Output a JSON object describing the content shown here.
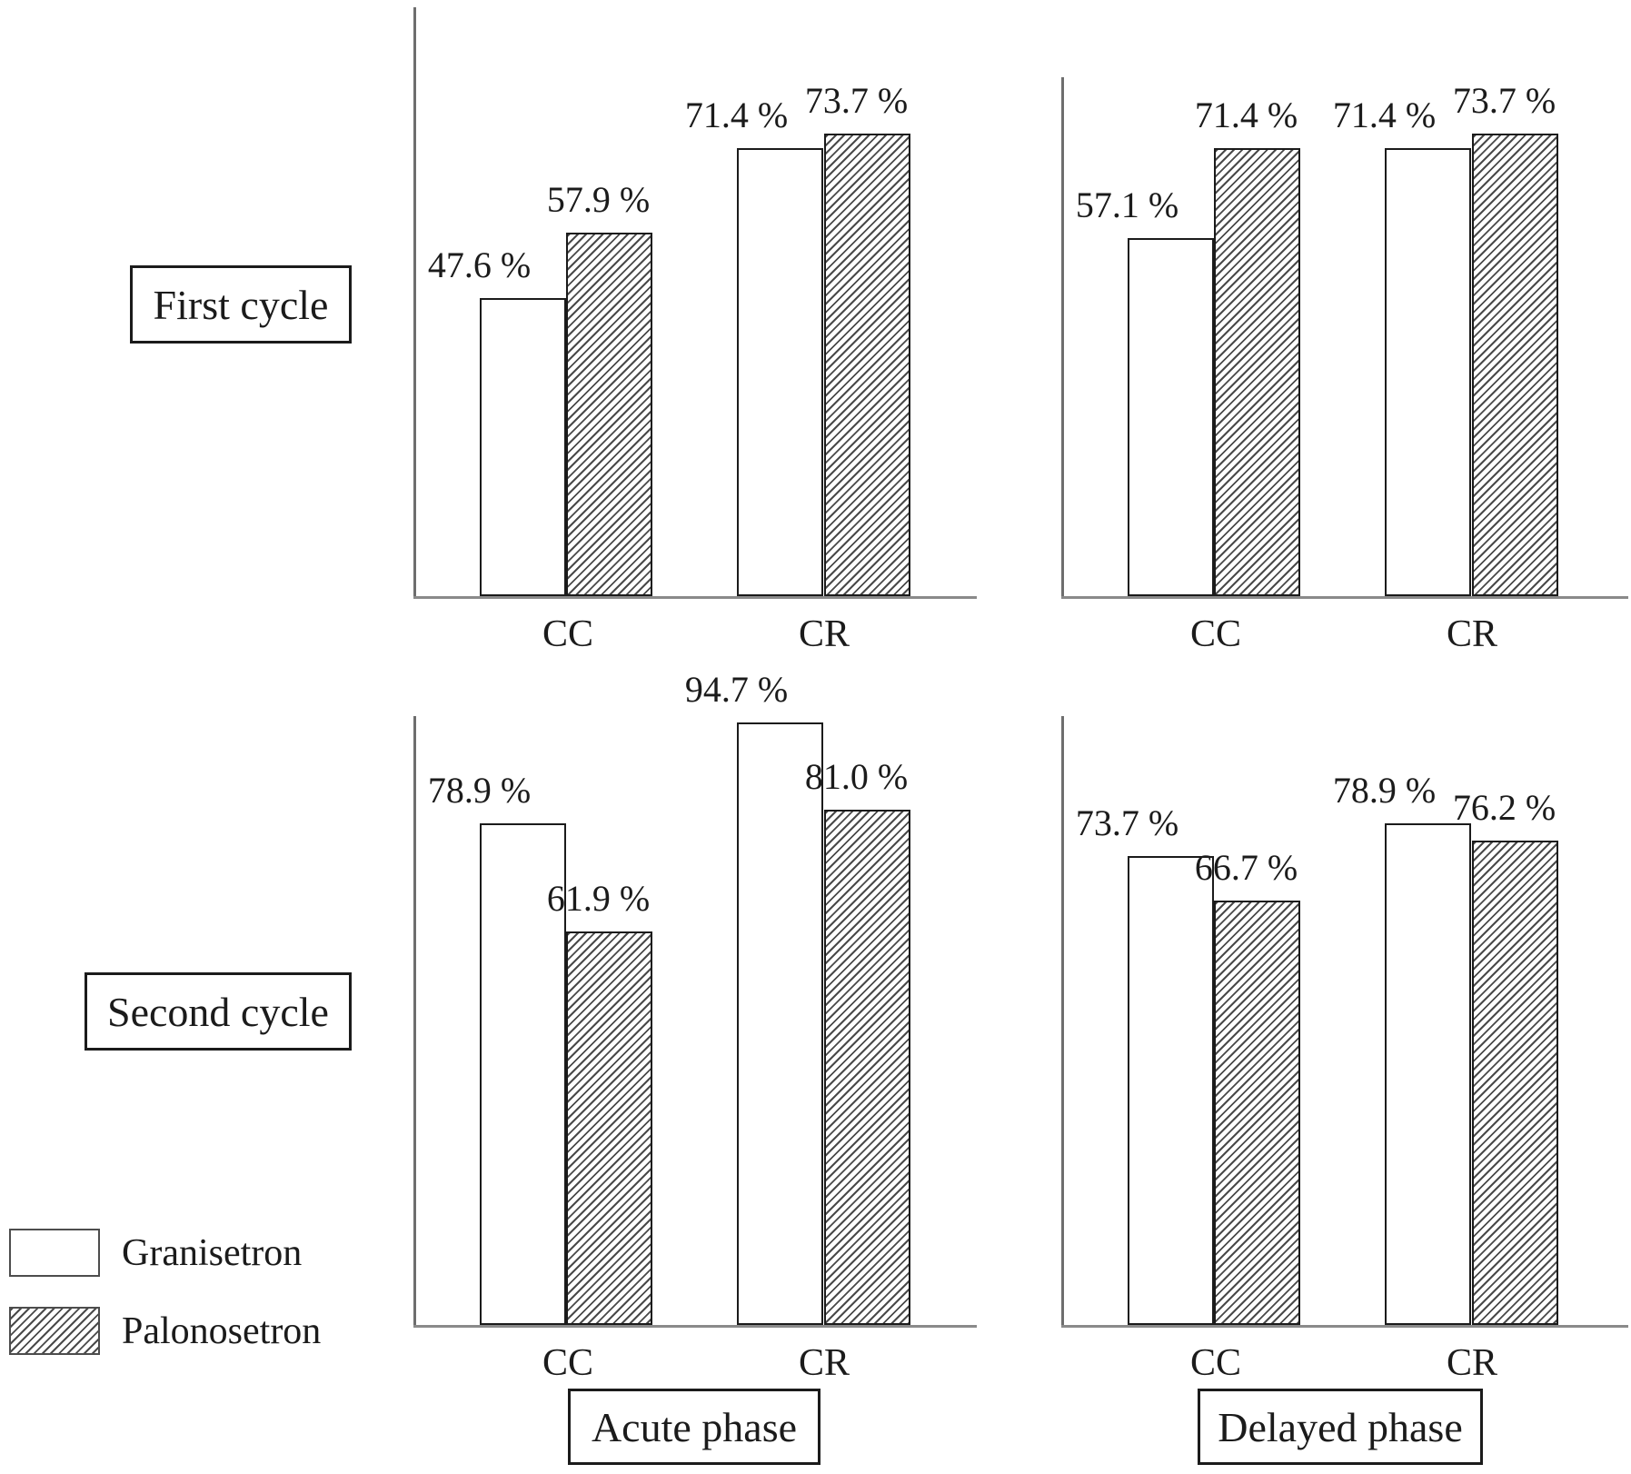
{
  "chart_data": {
    "type": "bar",
    "unit": "%",
    "title": "",
    "categories": [
      "CC",
      "CR"
    ],
    "row_labels": [
      "First cycle",
      "Second cycle"
    ],
    "col_labels": [
      "Acute phase",
      "Delayed phase"
    ],
    "legend": [
      {
        "name": "Granisetron",
        "fill": "white"
      },
      {
        "name": "Palonosetron",
        "fill": "hatched"
      }
    ],
    "axis": {
      "y_min": 0,
      "y_max": 100,
      "gridlines": false,
      "y_ticks_shown": false
    },
    "colors": {
      "bar_outline": "#1b1b1b",
      "axis_gray": "#8a8a8a",
      "hatch_line": "#4a4a4a"
    },
    "panels": [
      {
        "cycle": "First cycle",
        "phase": "Acute phase",
        "categories": [
          "CC",
          "CR"
        ],
        "series": [
          {
            "name": "Granisetron",
            "values": [
              47.6,
              71.4
            ],
            "labels": [
              "47.6 %",
              "71.4 %"
            ]
          },
          {
            "name": "Palonosetron",
            "values": [
              57.9,
              73.7
            ],
            "labels": [
              "57.9 %",
              "73.7 %"
            ]
          }
        ]
      },
      {
        "cycle": "First cycle",
        "phase": "Delayed phase",
        "categories": [
          "CC",
          "CR"
        ],
        "series": [
          {
            "name": "Granisetron",
            "values": [
              57.1,
              71.4
            ],
            "labels": [
              "57.1 %",
              "71.4 %"
            ]
          },
          {
            "name": "Palonosetron",
            "values": [
              71.4,
              73.7
            ],
            "labels": [
              "71.4 %",
              "73.7 %"
            ]
          }
        ]
      },
      {
        "cycle": "Second cycle",
        "phase": "Acute phase",
        "categories": [
          "CC",
          "CR"
        ],
        "series": [
          {
            "name": "Granisetron",
            "values": [
              78.9,
              94.7
            ],
            "labels": [
              "78.9 %",
              "94.7 %"
            ]
          },
          {
            "name": "Palonosetron",
            "values": [
              61.9,
              81.0
            ],
            "labels": [
              "61.9 %",
              "81.0 %"
            ]
          }
        ]
      },
      {
        "cycle": "Second cycle",
        "phase": "Delayed phase",
        "categories": [
          "CC",
          "CR"
        ],
        "series": [
          {
            "name": "Granisetron",
            "values": [
              73.7,
              78.9
            ],
            "labels": [
              "73.7 %",
              "78.9 %"
            ]
          },
          {
            "name": "Palonosetron",
            "values": [
              66.7,
              76.2
            ],
            "labels": [
              "66.7 %",
              "76.2 %"
            ]
          }
        ]
      }
    ]
  }
}
